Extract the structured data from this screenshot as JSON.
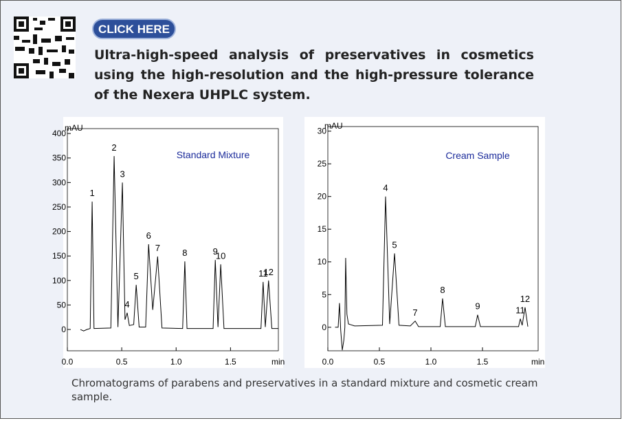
{
  "header": {
    "button": "CLICK HERE",
    "title": "Ultra-high-speed analysis of preservatives in cosmetics using the high-resolution and the high-pressure tolerance of the Nexera UHPLC system."
  },
  "chart_data": [
    {
      "type": "line",
      "title": "Standard Mixture",
      "y_label": "mAU",
      "x_label": "min",
      "color": "#000000",
      "xlim": [
        0,
        1.94
      ],
      "ylim": [
        -43.5,
        410
      ],
      "xticks": [
        {
          "value": 0,
          "label": "0.0"
        },
        0.5,
        {
          "value": 1,
          "label": "1.0"
        },
        1.5
      ],
      "yticks": [
        0,
        50,
        100,
        150,
        200,
        250,
        300,
        350,
        400
      ],
      "x": [
        0.12,
        0.15,
        0.18,
        0.21,
        0.228,
        0.245,
        0.4,
        0.43,
        0.465,
        0.506,
        0.53,
        0.55,
        0.57,
        0.61,
        0.633,
        0.66,
        0.72,
        0.747,
        0.785,
        0.83,
        0.87,
        1.06,
        1.08,
        1.1,
        1.34,
        1.36,
        1.385,
        1.41,
        1.44,
        1.78,
        1.8,
        1.82,
        1.85,
        1.88,
        1.94
      ],
      "values": [
        0,
        -3,
        0,
        2,
        261,
        2,
        3,
        354,
        5,
        300,
        20,
        34,
        8,
        10,
        91,
        5,
        5,
        174,
        40,
        149,
        3,
        2,
        139,
        2,
        2,
        142,
        5,
        133,
        2,
        2,
        97,
        5,
        100,
        2,
        2
      ],
      "peaks": [
        {
          "label": "1",
          "x": 0.228,
          "y": 261
        },
        {
          "label": "2",
          "x": 0.43,
          "y": 354
        },
        {
          "label": "3",
          "x": 0.506,
          "y": 300
        },
        {
          "label": "4",
          "x": 0.55,
          "y": 34
        },
        {
          "label": "5",
          "x": 0.633,
          "y": 91
        },
        {
          "label": "6",
          "x": 0.747,
          "y": 174
        },
        {
          "label": "7",
          "x": 0.83,
          "y": 149
        },
        {
          "label": "8",
          "x": 1.08,
          "y": 139
        },
        {
          "label": "9",
          "x": 1.36,
          "y": 142
        },
        {
          "label": "10",
          "x": 1.41,
          "y": 133
        },
        {
          "label": "11",
          "x": 1.8,
          "y": 97
        },
        {
          "label": "12",
          "x": 1.85,
          "y": 100
        }
      ]
    },
    {
      "type": "line",
      "title": "Cream Sample",
      "y_label": "mAU",
      "x_label": "min",
      "color": "#000000",
      "xlim": [
        0,
        2.04
      ],
      "ylim": [
        -3.6,
        30.7
      ],
      "xticks": [
        {
          "value": 0,
          "label": "0.0"
        },
        0.5,
        {
          "value": 1,
          "label": "1.0"
        },
        1.5
      ],
      "yticks": [
        0,
        5,
        10,
        15,
        20,
        25,
        30
      ],
      "x": [
        0.07,
        0.1,
        0.113,
        0.125,
        0.14,
        0.155,
        0.165,
        0.173,
        0.185,
        0.2,
        0.26,
        0.53,
        0.56,
        0.6,
        0.647,
        0.69,
        0.8,
        0.847,
        0.88,
        1.09,
        1.113,
        1.14,
        1.43,
        1.453,
        1.48,
        1.85,
        1.867,
        1.885,
        1.913,
        1.94
      ],
      "values": [
        0,
        0,
        3.7,
        -0.5,
        -3.5,
        -2,
        0,
        10.6,
        2,
        0.5,
        0.2,
        0.3,
        20,
        0.5,
        11.3,
        0.3,
        0.2,
        0.95,
        0.1,
        0.1,
        4.4,
        0.1,
        0.1,
        1.9,
        0.1,
        0.1,
        1.3,
        0.3,
        3.05,
        0.1
      ],
      "peaks": [
        {
          "label": "4",
          "x": 0.56,
          "y": 20
        },
        {
          "label": "5",
          "x": 0.647,
          "y": 11.3
        },
        {
          "label": "7",
          "x": 0.847,
          "y": 0.95
        },
        {
          "label": "8",
          "x": 1.113,
          "y": 4.4
        },
        {
          "label": "9",
          "x": 1.453,
          "y": 1.9
        },
        {
          "label": "11",
          "x": 1.867,
          "y": 1.3
        },
        {
          "label": "12",
          "x": 1.913,
          "y": 3.05
        }
      ]
    }
  ],
  "caption": "Chromatograms of parabens and preservatives in a standard mixture and cosmetic cream sample."
}
